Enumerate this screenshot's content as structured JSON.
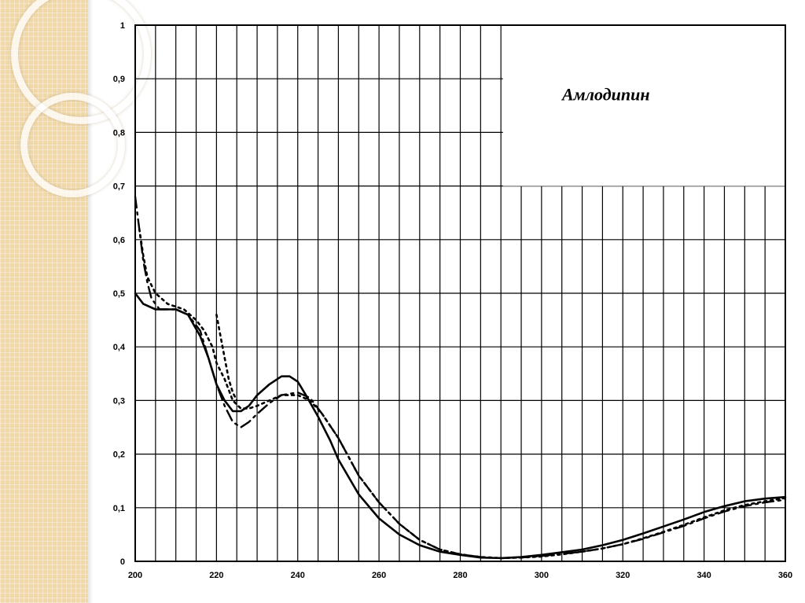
{
  "chart_data": {
    "type": "line",
    "title": "Амлодипин",
    "xlabel": "",
    "ylabel": "",
    "xlim": [
      200,
      360
    ],
    "ylim": [
      0,
      1
    ],
    "grid": true,
    "x_ticks": [
      "200",
      "220",
      "240",
      "260",
      "280",
      "300",
      "320",
      "340",
      "360"
    ],
    "y_ticks": [
      "0",
      "0,1",
      "0,2",
      "0,3",
      "0,4",
      "0,5",
      "0,6",
      "0,7",
      "0,8",
      "0,9",
      "1"
    ],
    "series": [
      {
        "style": "solid",
        "points": [
          [
            200,
            0.5
          ],
          [
            202,
            0.48
          ],
          [
            205,
            0.47
          ],
          [
            210,
            0.47
          ],
          [
            213,
            0.46
          ],
          [
            216,
            0.42
          ],
          [
            218,
            0.38
          ],
          [
            220,
            0.33
          ],
          [
            222,
            0.3
          ],
          [
            224,
            0.28
          ],
          [
            226,
            0.28
          ],
          [
            228,
            0.29
          ],
          [
            230,
            0.31
          ],
          [
            233,
            0.33
          ],
          [
            236,
            0.345
          ],
          [
            238,
            0.345
          ],
          [
            240,
            0.335
          ],
          [
            242,
            0.31
          ],
          [
            245,
            0.27
          ],
          [
            248,
            0.225
          ],
          [
            250,
            0.19
          ],
          [
            255,
            0.125
          ],
          [
            260,
            0.08
          ],
          [
            265,
            0.05
          ],
          [
            270,
            0.03
          ],
          [
            275,
            0.018
          ],
          [
            280,
            0.012
          ],
          [
            285,
            0.007
          ],
          [
            290,
            0.006
          ],
          [
            295,
            0.008
          ],
          [
            300,
            0.012
          ],
          [
            305,
            0.017
          ],
          [
            310,
            0.022
          ],
          [
            315,
            0.03
          ],
          [
            320,
            0.04
          ],
          [
            325,
            0.052
          ],
          [
            330,
            0.065
          ],
          [
            335,
            0.078
          ],
          [
            340,
            0.092
          ],
          [
            345,
            0.103
          ],
          [
            350,
            0.112
          ],
          [
            355,
            0.117
          ],
          [
            360,
            0.12
          ]
        ]
      },
      {
        "style": "dashed",
        "points": [
          [
            200,
            0.68
          ],
          [
            201,
            0.62
          ],
          [
            202,
            0.56
          ],
          [
            203,
            0.52
          ],
          [
            204,
            0.49
          ],
          [
            206,
            0.47
          ],
          [
            210,
            0.47
          ],
          [
            213,
            0.46
          ],
          [
            216,
            0.43
          ],
          [
            218,
            0.38
          ],
          [
            220,
            0.33
          ],
          [
            222,
            0.29
          ],
          [
            224,
            0.26
          ],
          [
            226,
            0.25
          ],
          [
            228,
            0.26
          ],
          [
            230,
            0.275
          ],
          [
            233,
            0.295
          ],
          [
            236,
            0.31
          ],
          [
            240,
            0.315
          ],
          [
            243,
            0.305
          ],
          [
            246,
            0.275
          ],
          [
            250,
            0.23
          ],
          [
            255,
            0.16
          ],
          [
            260,
            0.11
          ],
          [
            265,
            0.07
          ],
          [
            270,
            0.04
          ],
          [
            275,
            0.022
          ],
          [
            280,
            0.013
          ],
          [
            285,
            0.008
          ],
          [
            290,
            0.006
          ],
          [
            295,
            0.007
          ],
          [
            300,
            0.01
          ],
          [
            305,
            0.014
          ],
          [
            310,
            0.018
          ],
          [
            315,
            0.024
          ],
          [
            320,
            0.032
          ],
          [
            325,
            0.042
          ],
          [
            330,
            0.054
          ],
          [
            335,
            0.066
          ],
          [
            340,
            0.08
          ],
          [
            345,
            0.093
          ],
          [
            350,
            0.103
          ],
          [
            355,
            0.11
          ],
          [
            360,
            0.115
          ]
        ]
      },
      {
        "style": "dotted",
        "points": [
          [
            201,
            0.62
          ],
          [
            202,
            0.57
          ],
          [
            203,
            0.53
          ],
          [
            205,
            0.5
          ],
          [
            208,
            0.48
          ],
          [
            212,
            0.47
          ],
          [
            215,
            0.45
          ],
          [
            217,
            0.43
          ],
          [
            219,
            0.4
          ],
          [
            220,
            0.37
          ],
          [
            222,
            0.34
          ],
          [
            224,
            0.3
          ],
          [
            226,
            0.285
          ],
          [
            228,
            0.285
          ],
          [
            230,
            0.29
          ],
          [
            233,
            0.3
          ],
          [
            236,
            0.31
          ],
          [
            240,
            0.31
          ],
          [
            243,
            0.3
          ],
          [
            246,
            0.275
          ],
          [
            250,
            0.23
          ],
          [
            255,
            0.16
          ],
          [
            260,
            0.11
          ],
          [
            265,
            0.07
          ],
          [
            270,
            0.04
          ],
          [
            275,
            0.022
          ],
          [
            280,
            0.013
          ],
          [
            285,
            0.008
          ],
          [
            290,
            0.006
          ],
          [
            295,
            0.007
          ],
          [
            300,
            0.009
          ],
          [
            305,
            0.013
          ],
          [
            310,
            0.018
          ],
          [
            315,
            0.024
          ],
          [
            320,
            0.032
          ],
          [
            325,
            0.043
          ],
          [
            330,
            0.055
          ],
          [
            335,
            0.068
          ],
          [
            340,
            0.082
          ],
          [
            345,
            0.095
          ],
          [
            350,
            0.105
          ],
          [
            355,
            0.112
          ],
          [
            360,
            0.118
          ]
        ]
      },
      {
        "style": "dotted",
        "points": [
          [
            220,
            0.46
          ],
          [
            221,
            0.42
          ],
          [
            222,
            0.38
          ],
          [
            223,
            0.34
          ],
          [
            224,
            0.315
          ],
          [
            225,
            0.3
          ]
        ]
      }
    ]
  }
}
